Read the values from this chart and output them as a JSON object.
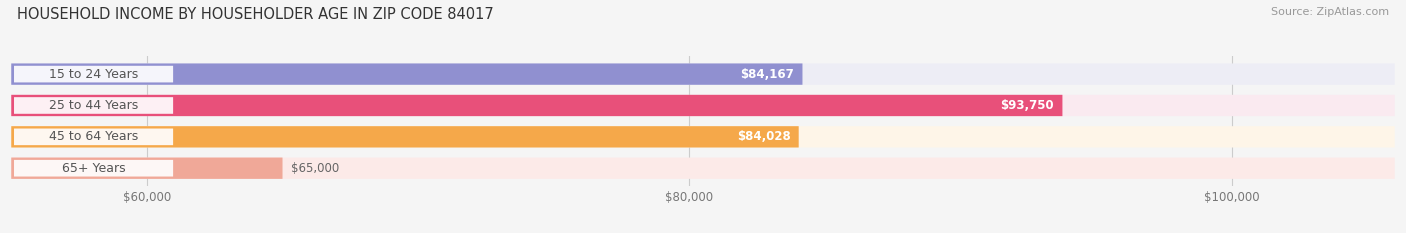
{
  "title": "HOUSEHOLD INCOME BY HOUSEHOLDER AGE IN ZIP CODE 84017",
  "source": "Source: ZipAtlas.com",
  "categories": [
    "15 to 24 Years",
    "25 to 44 Years",
    "45 to 64 Years",
    "65+ Years"
  ],
  "values": [
    84167,
    93750,
    84028,
    65000
  ],
  "bar_colors": [
    "#9090d0",
    "#e8507a",
    "#f5a84a",
    "#f0a898"
  ],
  "bar_bg_colors": [
    "#ededf5",
    "#faeaf0",
    "#fef5e8",
    "#fceae8"
  ],
  "value_labels": [
    "$84,167",
    "$93,750",
    "$84,028",
    "$65,000"
  ],
  "label_text_color": "#555555",
  "value_label_color_inside": "#ffffff",
  "value_label_color_outside": "#666666",
  "xmin": 55000,
  "xmax": 106000,
  "xticks": [
    60000,
    80000,
    100000
  ],
  "xticklabels": [
    "$60,000",
    "$80,000",
    "$100,000"
  ],
  "title_fontsize": 10.5,
  "source_fontsize": 8,
  "label_fontsize": 9,
  "value_fontsize": 8.5,
  "tick_fontsize": 8.5,
  "background_color": "#f5f5f5",
  "grid_color": "#cccccc"
}
